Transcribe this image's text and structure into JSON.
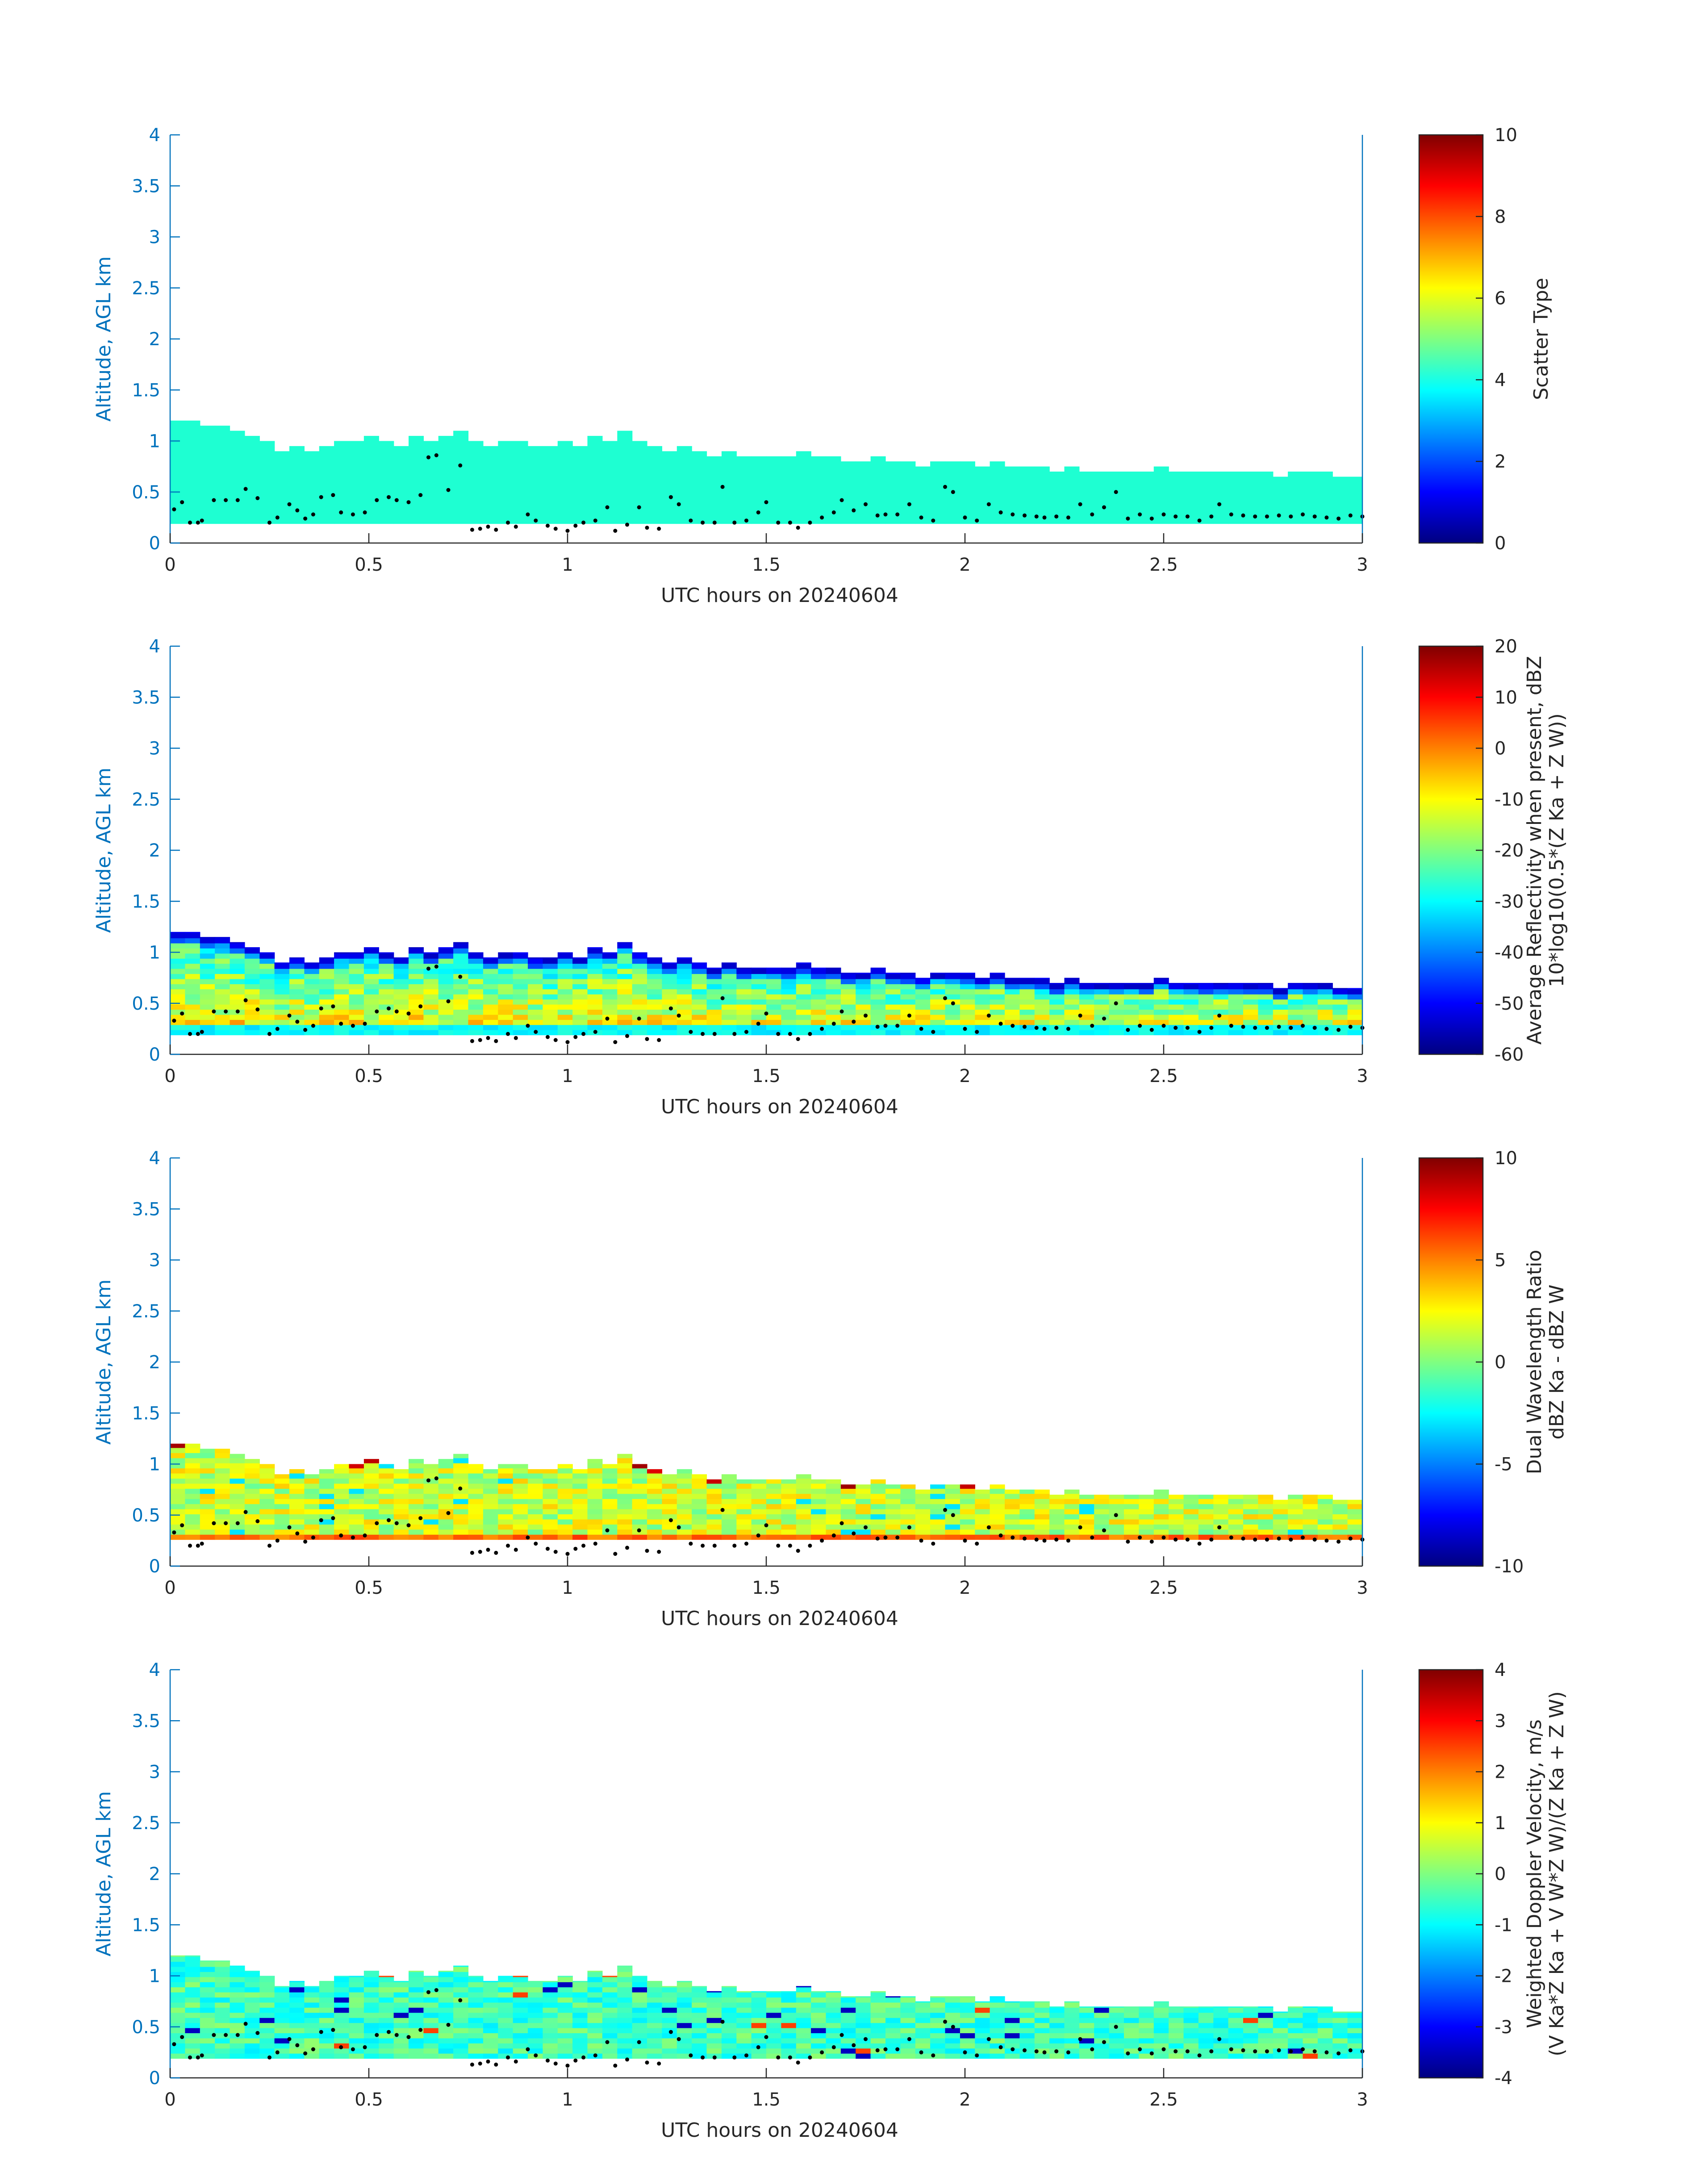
{
  "colors": {
    "axis_blue": "#0072bd",
    "text_dark": "#262626",
    "scatter_fill": "#1effd2",
    "cloud_base_dots": "#000000"
  },
  "chart_data": [
    {
      "type": "heatmap",
      "xlabel": "UTC hours on 20240604",
      "ylabel": "Altitude, AGL km",
      "xlim": [
        0,
        3
      ],
      "ylim": [
        0,
        4
      ],
      "x_ticks": [
        "0",
        "0.5",
        "1",
        "1.5",
        "2",
        "2.5",
        "3"
      ],
      "y_ticks": [
        "0",
        "0.5",
        "1",
        "1.5",
        "2",
        "2.5",
        "3",
        "3.5",
        "4"
      ],
      "colorbar": {
        "label_lines": [
          "Scatter Type"
        ],
        "range": [
          0,
          10
        ],
        "ticks": [
          "0",
          "2",
          "4",
          "6",
          "8",
          "10"
        ]
      },
      "field": "scatter_type",
      "cloud_bottom_km": 0.19,
      "cloud_top_km_approx": "1.2 at 0 h decreasing to 0.65 at 3 h",
      "dominant_value": 4.1
    },
    {
      "type": "heatmap",
      "xlabel": "UTC hours on 20240604",
      "ylabel": "Altitude, AGL km",
      "xlim": [
        0,
        3
      ],
      "ylim": [
        0,
        4
      ],
      "x_ticks": [
        "0",
        "0.5",
        "1",
        "1.5",
        "2",
        "2.5",
        "3"
      ],
      "y_ticks": [
        "0",
        "0.5",
        "1",
        "1.5",
        "2",
        "2.5",
        "3",
        "3.5",
        "4"
      ],
      "colorbar": {
        "label_lines": [
          "Average Reflectivity when present, dBZ",
          "10*log10(0.5*(Z Ka + Z W))"
        ],
        "range": [
          -60,
          20
        ],
        "ticks": [
          "-60",
          "-50",
          "-40",
          "-30",
          "-20",
          "-10",
          "0",
          "10",
          "20"
        ]
      },
      "field": "reflectivity",
      "cloud_bottom_km": 0.19,
      "value_range_shown": [
        -55,
        0
      ]
    },
    {
      "type": "heatmap",
      "xlabel": "UTC hours on 20240604",
      "ylabel": "Altitude, AGL km",
      "xlim": [
        0,
        3
      ],
      "ylim": [
        0,
        4
      ],
      "x_ticks": [
        "0",
        "0.5",
        "1",
        "1.5",
        "2",
        "2.5",
        "3"
      ],
      "y_ticks": [
        "0",
        "0.5",
        "1",
        "1.5",
        "2",
        "2.5",
        "3",
        "3.5",
        "4"
      ],
      "colorbar": {
        "label_lines": [
          "Dual Wavelength Ratio",
          "dBZ Ka - dBZ W"
        ],
        "range": [
          -10,
          10
        ],
        "ticks": [
          "-10",
          "-5",
          "0",
          "5",
          "10"
        ]
      },
      "field": "dwr",
      "cloud_bottom_km": 0.26,
      "value_range_shown": [
        -3,
        8
      ]
    },
    {
      "type": "heatmap",
      "xlabel": "UTC hours on 20240604",
      "ylabel": "Altitude, AGL km",
      "xlim": [
        0,
        3
      ],
      "ylim": [
        0,
        4
      ],
      "x_ticks": [
        "0",
        "0.5",
        "1",
        "1.5",
        "2",
        "2.5",
        "3"
      ],
      "y_ticks": [
        "0",
        "0.5",
        "1",
        "1.5",
        "2",
        "2.5",
        "3",
        "3.5",
        "4"
      ],
      "colorbar": {
        "label_lines": [
          "Weighted Doppler Velocity, m/s",
          "(V Ka*Z Ka + V W*Z W)/(Z Ka + Z W)"
        ],
        "range": [
          -4,
          4
        ],
        "ticks": [
          "-4",
          "-3",
          "-2",
          "-1",
          "0",
          "1",
          "2",
          "3",
          "4"
        ]
      },
      "field": "doppler_velocity",
      "cloud_bottom_km": 0.19,
      "value_range_shown": [
        -2,
        1
      ]
    }
  ],
  "cloud_top_km": [
    1.2,
    1.2,
    1.15,
    1.15,
    1.1,
    1.05,
    1.0,
    0.9,
    0.95,
    0.9,
    0.95,
    1.0,
    1.0,
    1.05,
    1.0,
    0.95,
    1.05,
    1.0,
    1.05,
    1.1,
    1.0,
    0.95,
    1.0,
    1.0,
    0.95,
    0.95,
    1.0,
    0.95,
    1.05,
    1.0,
    1.1,
    1.0,
    0.95,
    0.9,
    0.95,
    0.9,
    0.85,
    0.9,
    0.85,
    0.85,
    0.85,
    0.85,
    0.9,
    0.85,
    0.85,
    0.8,
    0.8,
    0.85,
    0.8,
    0.8,
    0.75,
    0.8,
    0.8,
    0.8,
    0.75,
    0.8,
    0.75,
    0.75,
    0.75,
    0.7,
    0.75,
    0.7,
    0.7,
    0.7,
    0.7,
    0.7,
    0.75,
    0.7,
    0.7,
    0.7,
    0.7,
    0.7,
    0.7,
    0.7,
    0.65,
    0.7,
    0.7,
    0.7,
    0.65,
    0.65
  ],
  "cloud_base_dots": [
    [
      0.01,
      0.33
    ],
    [
      0.03,
      0.4
    ],
    [
      0.05,
      0.2
    ],
    [
      0.07,
      0.2
    ],
    [
      0.08,
      0.22
    ],
    [
      0.11,
      0.42
    ],
    [
      0.14,
      0.42
    ],
    [
      0.17,
      0.42
    ],
    [
      0.19,
      0.53
    ],
    [
      0.22,
      0.44
    ],
    [
      0.25,
      0.2
    ],
    [
      0.27,
      0.25
    ],
    [
      0.3,
      0.38
    ],
    [
      0.32,
      0.32
    ],
    [
      0.34,
      0.24
    ],
    [
      0.36,
      0.28
    ],
    [
      0.38,
      0.45
    ],
    [
      0.41,
      0.47
    ],
    [
      0.43,
      0.3
    ],
    [
      0.46,
      0.28
    ],
    [
      0.49,
      0.3
    ],
    [
      0.52,
      0.42
    ],
    [
      0.55,
      0.45
    ],
    [
      0.57,
      0.42
    ],
    [
      0.6,
      0.4
    ],
    [
      0.63,
      0.47
    ],
    [
      0.65,
      0.84
    ],
    [
      0.67,
      0.86
    ],
    [
      0.7,
      0.52
    ],
    [
      0.73,
      0.76
    ],
    [
      0.76,
      0.13
    ],
    [
      0.78,
      0.14
    ],
    [
      0.8,
      0.16
    ],
    [
      0.82,
      0.13
    ],
    [
      0.85,
      0.2
    ],
    [
      0.87,
      0.16
    ],
    [
      0.9,
      0.28
    ],
    [
      0.92,
      0.22
    ],
    [
      0.95,
      0.17
    ],
    [
      0.97,
      0.14
    ],
    [
      1.0,
      0.12
    ],
    [
      1.02,
      0.17
    ],
    [
      1.04,
      0.2
    ],
    [
      1.07,
      0.22
    ],
    [
      1.1,
      0.35
    ],
    [
      1.12,
      0.12
    ],
    [
      1.15,
      0.18
    ],
    [
      1.18,
      0.35
    ],
    [
      1.2,
      0.15
    ],
    [
      1.23,
      0.14
    ],
    [
      1.26,
      0.45
    ],
    [
      1.28,
      0.38
    ],
    [
      1.31,
      0.22
    ],
    [
      1.34,
      0.2
    ],
    [
      1.37,
      0.2
    ],
    [
      1.39,
      0.55
    ],
    [
      1.42,
      0.2
    ],
    [
      1.45,
      0.22
    ],
    [
      1.48,
      0.3
    ],
    [
      1.5,
      0.4
    ],
    [
      1.53,
      0.2
    ],
    [
      1.56,
      0.2
    ],
    [
      1.58,
      0.15
    ],
    [
      1.61,
      0.2
    ],
    [
      1.64,
      0.25
    ],
    [
      1.67,
      0.3
    ],
    [
      1.69,
      0.42
    ],
    [
      1.72,
      0.32
    ],
    [
      1.75,
      0.38
    ],
    [
      1.78,
      0.27
    ],
    [
      1.8,
      0.28
    ],
    [
      1.83,
      0.28
    ],
    [
      1.86,
      0.38
    ],
    [
      1.89,
      0.25
    ],
    [
      1.92,
      0.22
    ],
    [
      1.95,
      0.55
    ],
    [
      1.97,
      0.5
    ],
    [
      2.0,
      0.25
    ],
    [
      2.03,
      0.22
    ],
    [
      2.06,
      0.38
    ],
    [
      2.09,
      0.3
    ],
    [
      2.12,
      0.28
    ],
    [
      2.15,
      0.27
    ],
    [
      2.18,
      0.26
    ],
    [
      2.2,
      0.25
    ],
    [
      2.23,
      0.26
    ],
    [
      2.26,
      0.25
    ],
    [
      2.29,
      0.38
    ],
    [
      2.32,
      0.28
    ],
    [
      2.35,
      0.35
    ],
    [
      2.38,
      0.5
    ],
    [
      2.41,
      0.24
    ],
    [
      2.44,
      0.28
    ],
    [
      2.47,
      0.24
    ],
    [
      2.5,
      0.28
    ],
    [
      2.53,
      0.26
    ],
    [
      2.56,
      0.26
    ],
    [
      2.59,
      0.22
    ],
    [
      2.62,
      0.26
    ],
    [
      2.64,
      0.38
    ],
    [
      2.67,
      0.28
    ],
    [
      2.7,
      0.27
    ],
    [
      2.73,
      0.26
    ],
    [
      2.76,
      0.26
    ],
    [
      2.79,
      0.27
    ],
    [
      2.82,
      0.26
    ],
    [
      2.85,
      0.28
    ],
    [
      2.88,
      0.26
    ],
    [
      2.91,
      0.25
    ],
    [
      2.94,
      0.24
    ],
    [
      2.97,
      0.27
    ],
    [
      3.0,
      0.26
    ]
  ]
}
